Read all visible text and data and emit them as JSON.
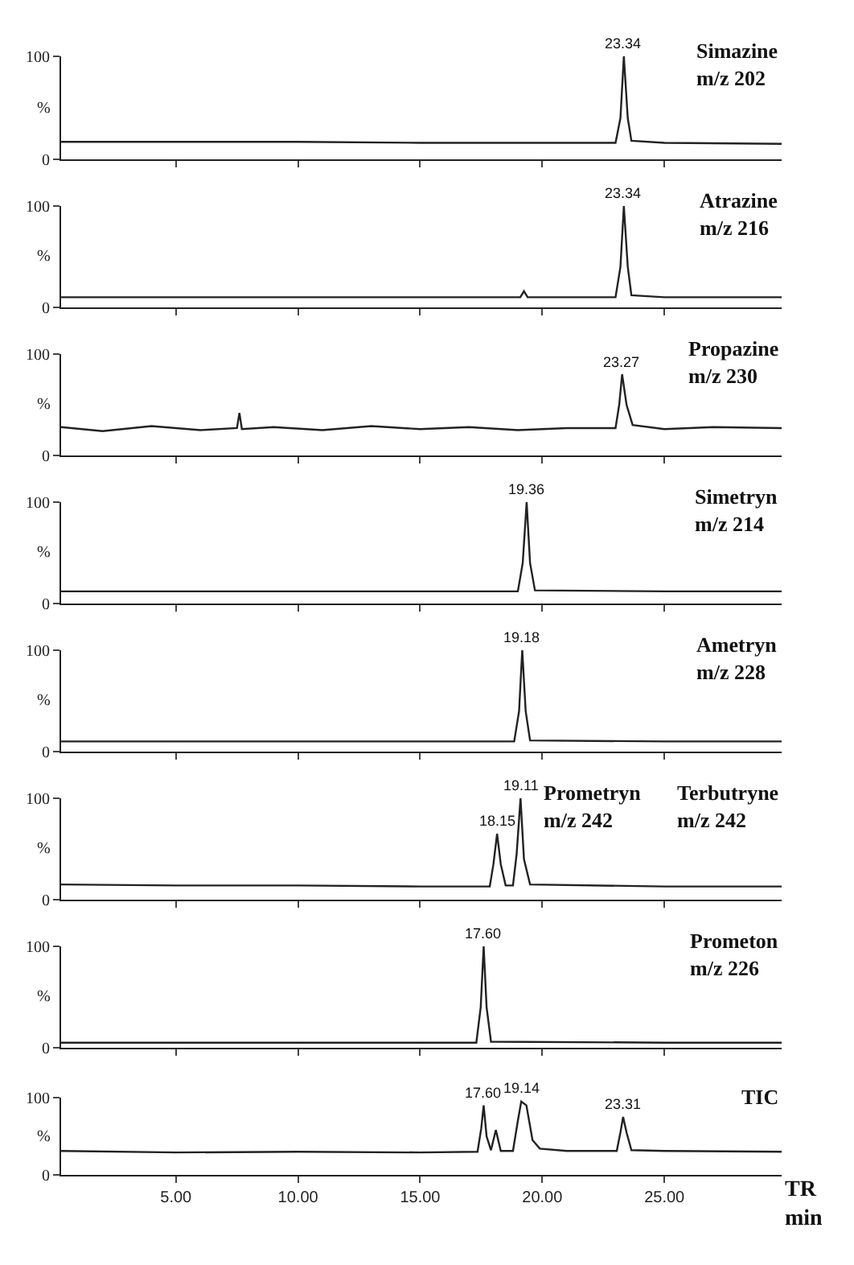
{
  "chart_data": [
    {
      "type": "line",
      "x": [
        0.3,
        5,
        10,
        15,
        20,
        23.0,
        23.2,
        23.34,
        23.5,
        23.65,
        25,
        29.8
      ],
      "series": [
        {
          "color": "#222222",
          "values": [
            17,
            17,
            17,
            16,
            16,
            16,
            40,
            100,
            40,
            18,
            16,
            15
          ]
        }
      ],
      "xlim": [
        0.3,
        29.8
      ],
      "xticks": [
        {
          "value": 5,
          "label": null
        },
        {
          "value": 10,
          "label": null
        },
        {
          "value": 15,
          "label": null
        },
        {
          "value": 20,
          "label": null
        },
        {
          "value": 25,
          "label": null
        }
      ],
      "ylim": [
        0,
        100
      ],
      "yticks": [
        0,
        100
      ],
      "ylabel": "%",
      "tick_labels": "y",
      "annotations": [
        {
          "text": "23.34",
          "x": 23.34,
          "y": 100
        },
        "Simazine\nm/z 202"
      ]
    },
    {
      "type": "line",
      "x": [
        0.3,
        5,
        10,
        15,
        18.9,
        19.1,
        19.25,
        19.4,
        23.0,
        23.2,
        23.34,
        23.5,
        23.65,
        25,
        29.8
      ],
      "series": [
        {
          "color": "#222222",
          "values": [
            10,
            10,
            10,
            10,
            10,
            10,
            16,
            10,
            10,
            40,
            100,
            40,
            12,
            10,
            10
          ]
        }
      ],
      "xlim": [
        0.3,
        29.8
      ],
      "xticks": [
        {
          "value": 5,
          "label": null
        },
        {
          "value": 10,
          "label": null
        },
        {
          "value": 15,
          "label": null
        },
        {
          "value": 20,
          "label": null
        },
        {
          "value": 25,
          "label": null
        }
      ],
      "ylim": [
        0,
        100
      ],
      "yticks": [
        0,
        100
      ],
      "ylabel": "%",
      "tick_labels": "y",
      "annotations": [
        {
          "text": "23.34",
          "x": 23.34,
          "y": 100
        },
        "Atrazine\nm/z 216"
      ]
    },
    {
      "type": "line",
      "x": [
        0.3,
        2,
        4,
        6,
        7.5,
        7.6,
        7.7,
        9,
        11,
        13,
        15,
        17,
        19,
        21,
        23.0,
        23.15,
        23.27,
        23.45,
        23.7,
        25,
        27,
        29.8
      ],
      "series": [
        {
          "color": "#222222",
          "values": [
            28,
            24,
            29,
            25,
            27,
            42,
            26,
            28,
            25,
            29,
            26,
            28,
            25,
            27,
            27,
            50,
            80,
            50,
            30,
            26,
            28,
            27
          ]
        }
      ],
      "xlim": [
        0.3,
        29.8
      ],
      "xticks": [
        {
          "value": 5,
          "label": null
        },
        {
          "value": 10,
          "label": null
        },
        {
          "value": 15,
          "label": null
        },
        {
          "value": 20,
          "label": null
        },
        {
          "value": 25,
          "label": null
        }
      ],
      "ylim": [
        0,
        100
      ],
      "yticks": [
        0,
        100
      ],
      "ylabel": "%",
      "tick_labels": "y",
      "annotations": [
        {
          "text": "23.27",
          "x": 23.27,
          "y": 80
        },
        "Propazine\nm/z 230"
      ]
    },
    {
      "type": "line",
      "x": [
        0.3,
        5,
        10,
        15,
        19.0,
        19.2,
        19.36,
        19.5,
        19.7,
        25,
        29.8
      ],
      "series": [
        {
          "color": "#222222",
          "values": [
            12,
            12,
            12,
            12,
            12,
            40,
            100,
            40,
            13,
            12,
            12
          ]
        }
      ],
      "xlim": [
        0.3,
        29.8
      ],
      "xticks": [
        {
          "value": 5,
          "label": null
        },
        {
          "value": 10,
          "label": null
        },
        {
          "value": 15,
          "label": null
        },
        {
          "value": 20,
          "label": null
        },
        {
          "value": 25,
          "label": null
        }
      ],
      "ylim": [
        0,
        100
      ],
      "yticks": [
        0,
        100
      ],
      "ylabel": "%",
      "tick_labels": "y",
      "annotations": [
        {
          "text": "19.36",
          "x": 19.36,
          "y": 100
        },
        "Simetryn\nm/z 214"
      ]
    },
    {
      "type": "line",
      "x": [
        0.3,
        5,
        10,
        15,
        18.85,
        19.05,
        19.18,
        19.32,
        19.5,
        25,
        29.8
      ],
      "series": [
        {
          "color": "#222222",
          "values": [
            10,
            10,
            10,
            10,
            10,
            40,
            100,
            40,
            11,
            10,
            10
          ]
        }
      ],
      "xlim": [
        0.3,
        29.8
      ],
      "xticks": [
        {
          "value": 5,
          "label": null
        },
        {
          "value": 10,
          "label": null
        },
        {
          "value": 15,
          "label": null
        },
        {
          "value": 20,
          "label": null
        },
        {
          "value": 25,
          "label": null
        }
      ],
      "ylim": [
        0,
        100
      ],
      "yticks": [
        0,
        100
      ],
      "ylabel": "%",
      "tick_labels": "y",
      "annotations": [
        {
          "text": "19.18",
          "x": 19.18,
          "y": 100
        },
        "Ametryn\nm/z 228"
      ]
    },
    {
      "type": "line",
      "x": [
        0.3,
        5,
        10,
        15,
        17.85,
        18.0,
        18.15,
        18.3,
        18.5,
        18.8,
        18.95,
        19.11,
        19.25,
        19.5,
        25,
        29.8
      ],
      "series": [
        {
          "color": "#222222",
          "values": [
            15,
            14,
            14,
            13,
            13,
            35,
            65,
            35,
            14,
            14,
            45,
            100,
            40,
            15,
            13,
            13
          ]
        }
      ],
      "xlim": [
        0.3,
        29.8
      ],
      "xticks": [
        {
          "value": 5,
          "label": null
        },
        {
          "value": 10,
          "label": null
        },
        {
          "value": 15,
          "label": null
        },
        {
          "value": 20,
          "label": null
        },
        {
          "value": 25,
          "label": null
        }
      ],
      "ylim": [
        0,
        100
      ],
      "yticks": [
        0,
        100
      ],
      "ylabel": "%",
      "tick_labels": "y",
      "annotations": [
        {
          "text": "18.15",
          "x": 18.15,
          "y": 65
        },
        {
          "text": "19.11",
          "x": 19.11,
          "y": 100
        },
        "Prometryn\nm/z 242",
        "Terbutryne\nm/z 242"
      ]
    },
    {
      "type": "line",
      "x": [
        0.3,
        5,
        10,
        15,
        17.3,
        17.48,
        17.6,
        17.72,
        17.9,
        25,
        29.8
      ],
      "series": [
        {
          "color": "#222222",
          "values": [
            5,
            5,
            5,
            5,
            5,
            40,
            100,
            40,
            6,
            5,
            5
          ]
        }
      ],
      "xlim": [
        0.3,
        29.8
      ],
      "xticks": [
        {
          "value": 5,
          "label": null
        },
        {
          "value": 10,
          "label": null
        },
        {
          "value": 15,
          "label": null
        },
        {
          "value": 20,
          "label": null
        },
        {
          "value": 25,
          "label": null
        }
      ],
      "ylim": [
        0,
        100
      ],
      "yticks": [
        0,
        100
      ],
      "ylabel": "%",
      "tick_labels": "y",
      "annotations": [
        {
          "text": "17.60",
          "x": 17.6,
          "y": 100
        },
        "Prometon\nm/z 226"
      ]
    },
    {
      "type": "line",
      "x": [
        0.3,
        5,
        10,
        15,
        17.35,
        17.5,
        17.6,
        17.72,
        17.9,
        18.1,
        18.3,
        18.8,
        19.0,
        19.14,
        19.35,
        19.6,
        19.9,
        21,
        23.05,
        23.2,
        23.31,
        23.45,
        23.65,
        25,
        29.8
      ],
      "series": [
        {
          "color": "#222222",
          "values": [
            31,
            29,
            30,
            29,
            30,
            60,
            90,
            50,
            32,
            58,
            31,
            31,
            70,
            95,
            90,
            45,
            34,
            31,
            31,
            55,
            75,
            55,
            32,
            31,
            30
          ]
        }
      ],
      "xlim": [
        0.3,
        29.8
      ],
      "xticks": [
        {
          "value": 5,
          "label": "5.00"
        },
        {
          "value": 10,
          "label": "10.00"
        },
        {
          "value": 15,
          "label": "15.00"
        },
        {
          "value": 20,
          "label": "20.00"
        },
        {
          "value": 25,
          "label": "25.00"
        }
      ],
      "ylim": [
        0,
        100
      ],
      "yticks": [
        0,
        100
      ],
      "ylabel": "%",
      "xlabel": "TR\nmin",
      "annotations": [
        {
          "text": "17.60",
          "x": 17.6,
          "y": 90
        },
        {
          "text": "19.14",
          "x": 19.14,
          "y": 95
        },
        {
          "text": "23.31",
          "x": 23.31,
          "y": 75
        },
        "TIC"
      ]
    }
  ]
}
